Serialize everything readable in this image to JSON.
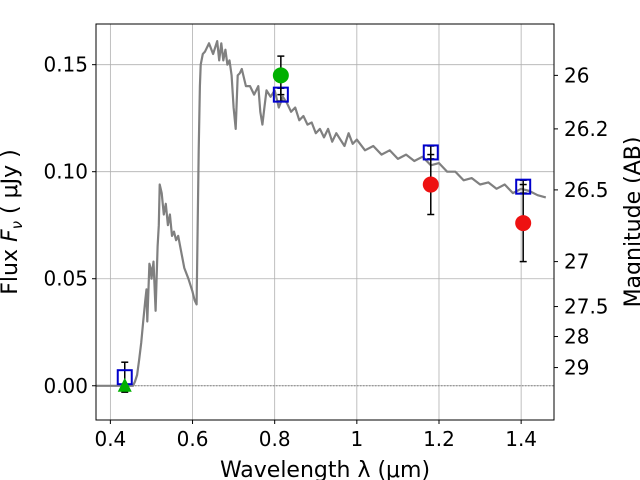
{
  "chart_data": {
    "type": "line",
    "title": "",
    "xlabel": "Wavelength  λ (μm)",
    "ylabel": "Flux  F_ν  ( μJy )",
    "ylabel_right": "Magnitude (AB)",
    "xlim": [
      0.365,
      1.48
    ],
    "ylim": [
      -0.016,
      0.169
    ],
    "grid": true,
    "x_ticks": [
      0.4,
      0.6,
      0.8,
      1.0,
      1.2,
      1.4
    ],
    "x_tick_labels": [
      "0.4",
      "0.6",
      "0.8",
      "1",
      "1.2",
      "1.4"
    ],
    "y_ticks": [
      0.0,
      0.05,
      0.1,
      0.15
    ],
    "y_tick_labels": [
      "0.00",
      "0.05",
      "0.10",
      "0.15"
    ],
    "y2_ticks": [
      {
        "label": "26",
        "flux": 0.145
      },
      {
        "label": "26.2",
        "flux": 0.12
      },
      {
        "label": "26.5",
        "flux": 0.0915
      },
      {
        "label": "27",
        "flux": 0.058
      },
      {
        "label": "27.5",
        "flux": 0.037
      },
      {
        "label": "28",
        "flux": 0.023
      },
      {
        "label": "29",
        "flux": 0.0085
      }
    ],
    "series": [
      {
        "kind": "line",
        "color": "#808080",
        "x": [
          0.365,
          0.455,
          0.46,
          0.465,
          0.47,
          0.475,
          0.48,
          0.485,
          0.488,
          0.49,
          0.495,
          0.498,
          0.5,
          0.505,
          0.51,
          0.515,
          0.518,
          0.52,
          0.525,
          0.53,
          0.535,
          0.54,
          0.545,
          0.55,
          0.555,
          0.56,
          0.565,
          0.57,
          0.58,
          0.59,
          0.6,
          0.605,
          0.61,
          0.615,
          0.618,
          0.62,
          0.625,
          0.63,
          0.64,
          0.65,
          0.66,
          0.665,
          0.67,
          0.675,
          0.68,
          0.685,
          0.69,
          0.695,
          0.7,
          0.705,
          0.71,
          0.715,
          0.72,
          0.73,
          0.74,
          0.75,
          0.76,
          0.765,
          0.77,
          0.775,
          0.78,
          0.79,
          0.8,
          0.81,
          0.82,
          0.83,
          0.84,
          0.85,
          0.86,
          0.87,
          0.88,
          0.89,
          0.9,
          0.91,
          0.92,
          0.93,
          0.94,
          0.95,
          0.96,
          0.97,
          0.98,
          0.99,
          1.0,
          1.02,
          1.04,
          1.06,
          1.08,
          1.1,
          1.12,
          1.14,
          1.16,
          1.18,
          1.2,
          1.22,
          1.24,
          1.26,
          1.28,
          1.3,
          1.32,
          1.34,
          1.36,
          1.38,
          1.4,
          1.42,
          1.44,
          1.46
        ],
        "y": [
          0.0,
          0.0,
          0.002,
          0.005,
          0.012,
          0.02,
          0.03,
          0.04,
          0.045,
          0.03,
          0.057,
          0.055,
          0.05,
          0.058,
          0.035,
          0.065,
          0.075,
          0.094,
          0.09,
          0.08,
          0.085,
          0.075,
          0.08,
          0.07,
          0.072,
          0.068,
          0.07,
          0.065,
          0.055,
          0.05,
          0.044,
          0.04,
          0.038,
          0.11,
          0.14,
          0.15,
          0.155,
          0.156,
          0.16,
          0.155,
          0.161,
          0.152,
          0.16,
          0.152,
          0.157,
          0.15,
          0.152,
          0.145,
          0.13,
          0.12,
          0.145,
          0.146,
          0.148,
          0.14,
          0.14,
          0.136,
          0.14,
          0.128,
          0.122,
          0.13,
          0.138,
          0.135,
          0.138,
          0.13,
          0.135,
          0.132,
          0.128,
          0.13,
          0.124,
          0.126,
          0.122,
          0.123,
          0.118,
          0.12,
          0.116,
          0.12,
          0.114,
          0.118,
          0.115,
          0.112,
          0.118,
          0.113,
          0.115,
          0.11,
          0.112,
          0.108,
          0.11,
          0.106,
          0.108,
          0.105,
          0.107,
          0.103,
          0.104,
          0.1,
          0.1,
          0.096,
          0.097,
          0.094,
          0.095,
          0.092,
          0.094,
          0.09,
          0.092,
          0.091,
          0.089,
          0.088
        ]
      },
      {
        "kind": "open-square",
        "color": "#0000cc",
        "x": [
          0.435,
          0.815,
          1.18,
          1.405
        ],
        "y": [
          0.004,
          0.136,
          0.109,
          0.093
        ],
        "yerr": [
          0.007,
          0.003,
          0.003,
          0.003
        ]
      },
      {
        "kind": "filled-circle",
        "color": "#00b000",
        "x": [
          0.815
        ],
        "y": [
          0.145
        ],
        "yerr": [
          0.009
        ]
      },
      {
        "kind": "filled-triangle",
        "color": "#00b000",
        "x": [
          0.435
        ],
        "y": [
          0.0
        ],
        "yerr": [
          0.0
        ]
      },
      {
        "kind": "filled-circle",
        "color": "#ee1111",
        "x": [
          1.18,
          1.405
        ],
        "y": [
          0.094,
          0.076
        ],
        "yerr": [
          0.014,
          0.018
        ]
      }
    ]
  }
}
